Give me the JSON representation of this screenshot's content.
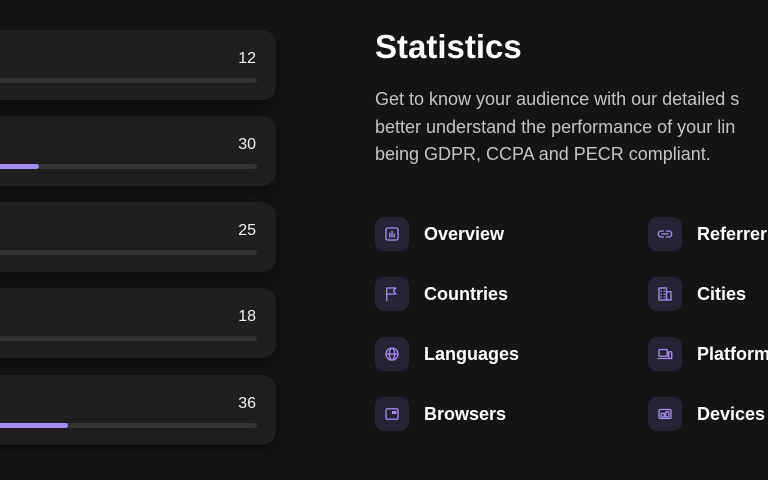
{
  "colors": {
    "background": "#141414",
    "card": "#1f1f1f",
    "track": "#333333",
    "accent": "#a48ef0",
    "icon_tile": "#262335"
  },
  "stat_cards": [
    {
      "count": "12",
      "fill": 0
    },
    {
      "count": "30",
      "fill": 0.24
    },
    {
      "count": "25",
      "fill": 0.04
    },
    {
      "count": "18",
      "fill": 0
    },
    {
      "count": "36",
      "fill": 0.34
    }
  ],
  "section": {
    "title": "Statistics",
    "description_lines": [
      "Get to know your audience with our detailed s",
      "better understand the performance of your lin",
      "being GDPR, CCPA and PECR compliant."
    ]
  },
  "features": [
    {
      "label": "Overview",
      "icon": "bar-chart-icon"
    },
    {
      "label": "Referrer",
      "icon": "link-icon"
    },
    {
      "label": "Countries",
      "icon": "flag-icon"
    },
    {
      "label": "Cities",
      "icon": "building-icon"
    },
    {
      "label": "Languages",
      "icon": "globe-icon"
    },
    {
      "label": "Platform",
      "icon": "monitor-icon"
    },
    {
      "label": "Browsers",
      "icon": "browser-window-icon"
    },
    {
      "label": "Devices",
      "icon": "devices-icon"
    }
  ]
}
